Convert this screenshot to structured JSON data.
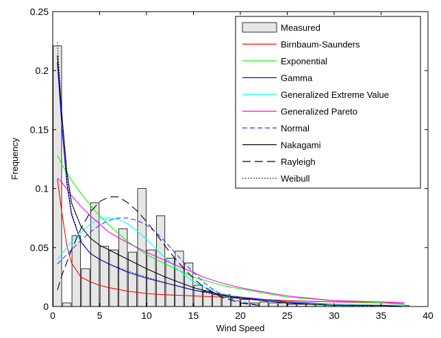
{
  "chart_data": {
    "type": "bar",
    "title": "",
    "xlabel": "Wind Speed",
    "ylabel": "Frequency",
    "xlim": [
      0,
      40
    ],
    "ylim": [
      0,
      0.25
    ],
    "xticks": [
      "0",
      "5",
      "10",
      "15",
      "20",
      "25",
      "30",
      "35",
      "40"
    ],
    "yticks": [
      "0",
      "0.05",
      "0.1",
      "0.15",
      "0.2",
      "0.25"
    ],
    "grid": false,
    "legend_position": "top-right",
    "histogram": {
      "name": "Measured",
      "bin_width": 1.0,
      "bin_starts": [
        0,
        1,
        2,
        3,
        4,
        5,
        6,
        7,
        8,
        9,
        10,
        11,
        12,
        13,
        14,
        15,
        16,
        17,
        18,
        19,
        20,
        21,
        22,
        23,
        24,
        25,
        26,
        27,
        28,
        29,
        30,
        31,
        32,
        33,
        34,
        35,
        36,
        37
      ],
      "values": [
        0.221,
        0.003,
        0.06,
        0.032,
        0.088,
        0.051,
        0.048,
        0.066,
        0.046,
        0.1,
        0.048,
        0.077,
        0.041,
        0.047,
        0.037,
        0.018,
        0.013,
        0.01,
        0.01,
        0.008,
        0.006,
        0.003,
        0.004,
        0.003,
        0.003,
        0.002,
        0.002,
        0.002,
        0.002,
        0.002,
        0.001,
        0.001,
        0.001,
        0.001,
        0.001,
        0.001,
        0.001,
        0.001
      ],
      "fill": "#e6e6e6",
      "stroke": "#000000"
    },
    "series": [
      {
        "name": "Birnbaum-Saunders",
        "color": "#ff0000",
        "dash": "solid",
        "x": [
          0.5,
          1,
          1.5,
          2,
          3,
          4,
          5,
          6,
          8,
          10,
          12,
          15,
          18,
          20,
          25,
          30,
          35,
          37.5
        ],
        "y": [
          0.108,
          0.078,
          0.052,
          0.037,
          0.025,
          0.021,
          0.018,
          0.016,
          0.013,
          0.011,
          0.01,
          0.009,
          0.008,
          0.007,
          0.005,
          0.004,
          0.003,
          0.003
        ]
      },
      {
        "name": "Exponential",
        "color": "#00ff00",
        "dash": "solid",
        "x": [
          0.5,
          1,
          2,
          3,
          4,
          5,
          6,
          7,
          8,
          10,
          12,
          15,
          18,
          20,
          25,
          30,
          35,
          37.5
        ],
        "y": [
          0.128,
          0.12,
          0.107,
          0.096,
          0.086,
          0.077,
          0.069,
          0.062,
          0.055,
          0.044,
          0.036,
          0.025,
          0.018,
          0.015,
          0.008,
          0.005,
          0.003,
          0.002
        ]
      },
      {
        "name": "Gamma",
        "color": "#0000ff",
        "dash": "solid",
        "x": [
          0.5,
          1,
          1.5,
          2,
          3,
          4,
          5,
          6,
          8,
          10,
          12,
          15,
          18,
          20,
          25,
          30,
          35,
          37.5
        ],
        "y": [
          0.207,
          0.15,
          0.105,
          0.078,
          0.055,
          0.045,
          0.04,
          0.036,
          0.029,
          0.024,
          0.02,
          0.014,
          0.01,
          0.008,
          0.004,
          0.002,
          0.001,
          0.001
        ]
      },
      {
        "name": "Generalized Extreme Value",
        "color": "#00ffff",
        "dash": "solid",
        "x": [
          0.5,
          1,
          2,
          3,
          4,
          5,
          6,
          7,
          8,
          9,
          10,
          11,
          12,
          13,
          14,
          15,
          16,
          18,
          20,
          25,
          30,
          35,
          37.5
        ],
        "y": [
          0.04,
          0.045,
          0.055,
          0.063,
          0.07,
          0.074,
          0.075,
          0.074,
          0.07,
          0.064,
          0.057,
          0.049,
          0.041,
          0.034,
          0.027,
          0.021,
          0.017,
          0.011,
          0.007,
          0.003,
          0.002,
          0.001,
          0.001
        ]
      },
      {
        "name": "Generalized Pareto",
        "color": "#ff00ff",
        "dash": "solid",
        "x": [
          0.5,
          1,
          2,
          3,
          4,
          5,
          6,
          8,
          10,
          12,
          14,
          15,
          16,
          18,
          20,
          22,
          25,
          30,
          35,
          37.5
        ],
        "y": [
          0.109,
          0.105,
          0.094,
          0.085,
          0.077,
          0.07,
          0.063,
          0.054,
          0.046,
          0.039,
          0.032,
          0.029,
          0.025,
          0.02,
          0.016,
          0.013,
          0.009,
          0.005,
          0.004,
          0.003
        ]
      },
      {
        "name": "Normal",
        "color": "#3333ff",
        "dash": "dashed",
        "x": [
          0.5,
          1,
          2,
          3,
          4,
          5,
          6,
          7,
          8,
          9,
          10,
          11,
          12,
          13,
          14,
          15,
          16,
          17,
          18,
          20,
          22
        ],
        "y": [
          0.036,
          0.04,
          0.048,
          0.056,
          0.063,
          0.069,
          0.073,
          0.075,
          0.075,
          0.073,
          0.069,
          0.063,
          0.055,
          0.046,
          0.037,
          0.029,
          0.021,
          0.015,
          0.01,
          0.004,
          0.001
        ]
      },
      {
        "name": "Nakagami",
        "color": "#000000",
        "dash": "solid",
        "x": [
          0.5,
          1,
          1.5,
          2,
          3,
          4,
          5,
          6,
          7,
          8,
          10,
          12,
          15,
          18,
          20,
          25,
          30,
          35,
          37.5
        ],
        "y": [
          0.213,
          0.16,
          0.115,
          0.088,
          0.068,
          0.058,
          0.052,
          0.048,
          0.044,
          0.04,
          0.032,
          0.025,
          0.016,
          0.01,
          0.007,
          0.003,
          0.001,
          0.001,
          0.0
        ]
      },
      {
        "name": "Rayleigh",
        "color": "#000000",
        "dash": "longdash",
        "x": [
          0.5,
          1,
          2,
          3,
          4,
          5,
          6,
          7,
          8,
          9,
          10,
          11,
          12,
          13,
          14,
          15,
          16,
          18,
          20,
          22
        ],
        "y": [
          0.014,
          0.027,
          0.048,
          0.066,
          0.08,
          0.089,
          0.093,
          0.093,
          0.088,
          0.081,
          0.072,
          0.062,
          0.051,
          0.041,
          0.032,
          0.024,
          0.017,
          0.008,
          0.003,
          0.001
        ]
      },
      {
        "name": "Weibull",
        "color": "#000000",
        "dash": "dotted",
        "x": [
          0.5,
          1,
          1.5,
          2,
          3,
          4,
          5,
          6,
          8,
          10,
          12,
          15,
          18,
          20,
          25,
          30,
          35,
          37.5
        ],
        "y": [
          0.224,
          0.16,
          0.11,
          0.08,
          0.055,
          0.045,
          0.04,
          0.036,
          0.03,
          0.025,
          0.02,
          0.014,
          0.009,
          0.007,
          0.003,
          0.001,
          0.0,
          0.0
        ]
      }
    ]
  }
}
